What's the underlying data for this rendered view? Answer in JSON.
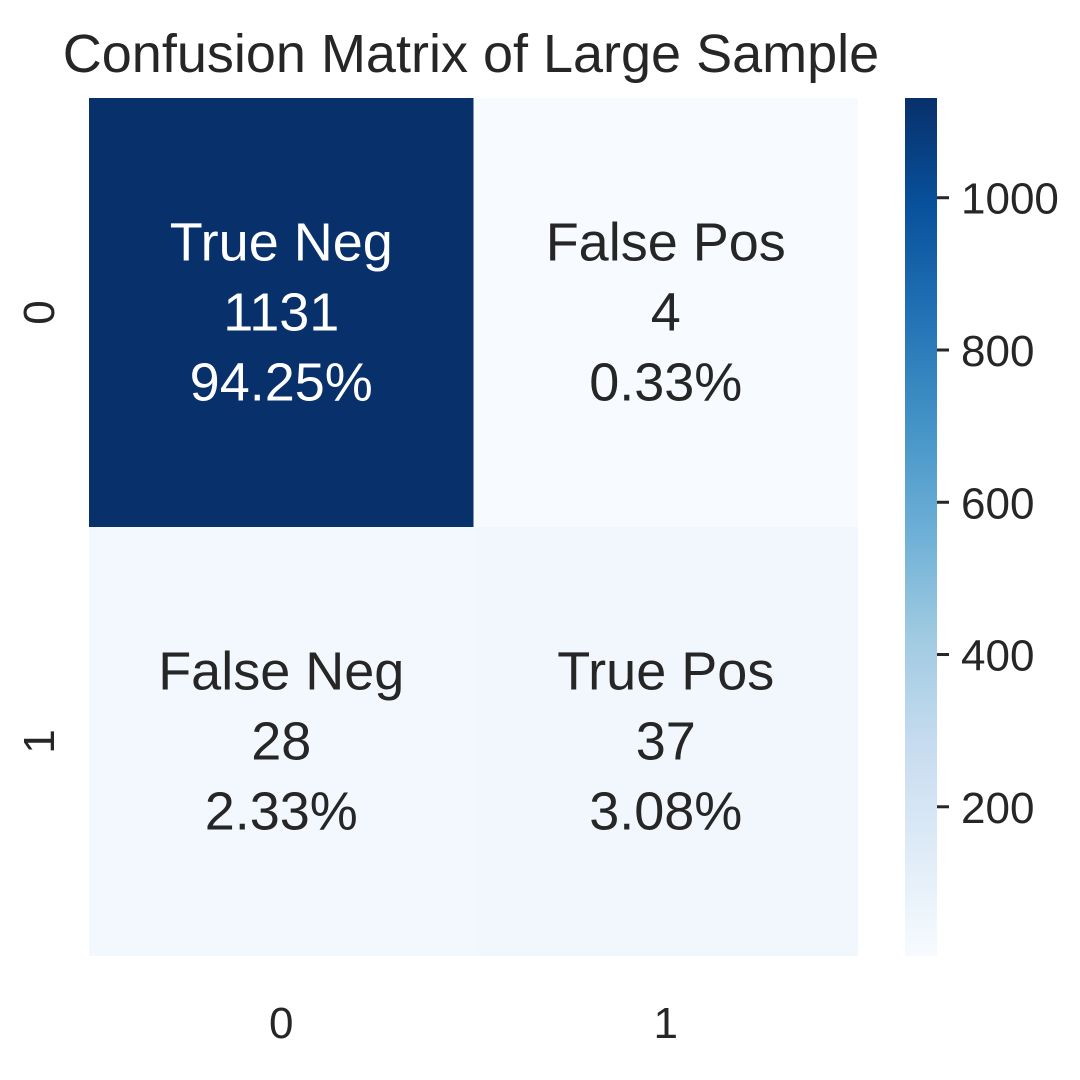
{
  "chart_data": {
    "type": "heatmap",
    "title": "Confusion Matrix of Large Sample",
    "x_categories": [
      "0",
      "1"
    ],
    "y_categories": [
      "0",
      "1"
    ],
    "values": [
      [
        1131,
        4
      ],
      [
        28,
        37
      ]
    ],
    "cell_labels": [
      [
        [
          "True Neg",
          "1131",
          "94.25%"
        ],
        [
          "False Pos",
          "4",
          "0.33%"
        ]
      ],
      [
        [
          "False Neg",
          "28",
          "2.33%"
        ],
        [
          "True Pos",
          "37",
          "3.08%"
        ]
      ]
    ],
    "colorbar": {
      "range": [
        4,
        1131
      ],
      "ticks": [
        200,
        400,
        600,
        800,
        1000
      ],
      "colormap": "Blues",
      "colors": [
        "#f7fbff",
        "#deebf7",
        "#c6dbef",
        "#9ecae1",
        "#6baed6",
        "#4292c6",
        "#2171b5",
        "#08519c",
        "#08306b"
      ]
    },
    "text_colors": {
      "dark": "#262626",
      "light": "#ffffff"
    }
  }
}
